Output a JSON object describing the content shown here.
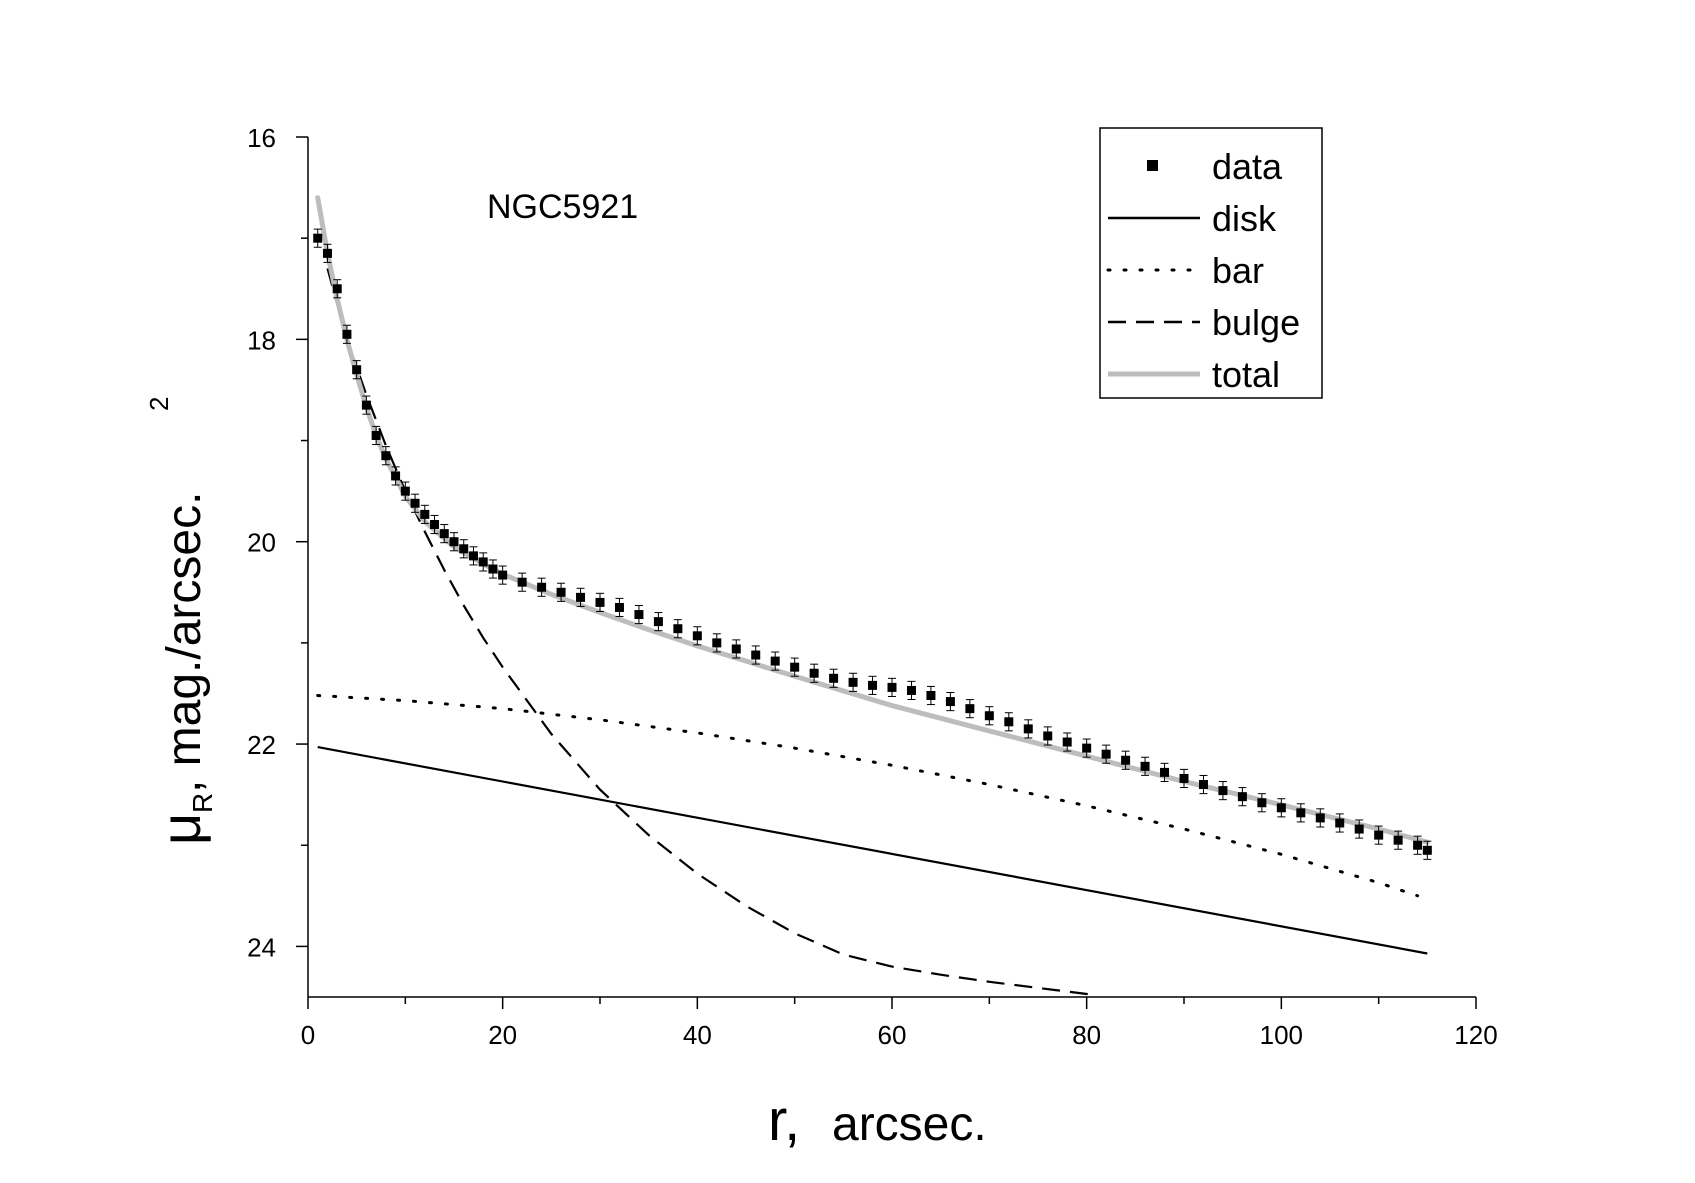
{
  "chart_data": {
    "type": "line",
    "title": "",
    "annotation": "NGC5921",
    "xlabel": {
      "main": "r,",
      "unit": "arcsec."
    },
    "ylabel": {
      "symbol": "μ",
      "subscript": "R",
      "unit": ", mag./arcsec.",
      "superscript": "2"
    },
    "xlim": [
      0,
      120
    ],
    "ylim": [
      16,
      24.5
    ],
    "y_inverted": true,
    "x_ticks": [
      0,
      20,
      40,
      60,
      80,
      100,
      120
    ],
    "x_tick_labels": [
      "0",
      "20",
      "40",
      "60",
      "80",
      "100",
      "120"
    ],
    "y_ticks": [
      16,
      18,
      20,
      22,
      24
    ],
    "y_tick_labels": [
      "16",
      "18",
      "20",
      "22",
      "24"
    ],
    "legend_position": "top-right",
    "legend": [
      {
        "key": "data",
        "label": "data",
        "style": "square"
      },
      {
        "key": "disk",
        "label": "disk",
        "style": "solid"
      },
      {
        "key": "bar",
        "label": "bar",
        "style": "dotted"
      },
      {
        "key": "bulge",
        "label": "bulge",
        "style": "dashed"
      },
      {
        "key": "total",
        "label": "total",
        "style": "solid-gray"
      }
    ],
    "series": [
      {
        "name": "data",
        "style": "square",
        "x": [
          1.0,
          2.0,
          3.0,
          4.0,
          5.0,
          6.0,
          7.0,
          8.0,
          9.0,
          10.0,
          11.0,
          12.0,
          13.0,
          14.0,
          15.0,
          16.0,
          17.0,
          18.0,
          19.0,
          20.0,
          22.0,
          24.0,
          26.0,
          28.0,
          30.0,
          32.0,
          34.0,
          36.0,
          38.0,
          40.0,
          42.0,
          44.0,
          46.0,
          48.0,
          50.0,
          52.0,
          54.0,
          56.0,
          58.0,
          60.0,
          62.0,
          64.0,
          66.0,
          68.0,
          70.0,
          72.0,
          74.0,
          76.0,
          78.0,
          80.0,
          82.0,
          84.0,
          86.0,
          88.0,
          90.0,
          92.0,
          94.0,
          96.0,
          98.0,
          100.0,
          102.0,
          104.0,
          106.0,
          108.0,
          110.0,
          112.0,
          114.0,
          115.0
        ],
        "y": [
          17.0,
          17.15,
          17.5,
          17.95,
          18.3,
          18.65,
          18.95,
          19.15,
          19.35,
          19.5,
          19.62,
          19.73,
          19.83,
          19.92,
          20.0,
          20.07,
          20.14,
          20.2,
          20.27,
          20.33,
          20.4,
          20.45,
          20.5,
          20.55,
          20.6,
          20.65,
          20.72,
          20.79,
          20.86,
          20.93,
          21.0,
          21.06,
          21.12,
          21.18,
          21.24,
          21.3,
          21.35,
          21.39,
          21.42,
          21.44,
          21.47,
          21.52,
          21.58,
          21.65,
          21.72,
          21.78,
          21.85,
          21.92,
          21.98,
          22.04,
          22.1,
          22.16,
          22.22,
          22.28,
          22.34,
          22.4,
          22.46,
          22.52,
          22.58,
          22.63,
          22.68,
          22.73,
          22.78,
          22.84,
          22.9,
          22.95,
          23.0,
          23.05
        ],
        "error": 0.06
      },
      {
        "name": "disk",
        "style": "solid",
        "x": [
          1,
          115
        ],
        "y": [
          22.03,
          24.07
        ]
      },
      {
        "name": "bar",
        "style": "dotted",
        "x": [
          1,
          10,
          20,
          30,
          40,
          50,
          60,
          70,
          80,
          90,
          100,
          110,
          114
        ],
        "y": [
          21.52,
          21.57,
          21.65,
          21.76,
          21.89,
          22.04,
          22.21,
          22.4,
          22.61,
          22.84,
          23.09,
          23.37,
          23.5
        ]
      },
      {
        "name": "bulge",
        "style": "dashed",
        "x": [
          2,
          4,
          6,
          8,
          10,
          12,
          14,
          16,
          18,
          20,
          25,
          30,
          35,
          40,
          45,
          50,
          55,
          60,
          65,
          70,
          75,
          80,
          81
        ],
        "y": [
          17.3,
          18.0,
          18.55,
          19.05,
          19.5,
          19.9,
          20.28,
          20.63,
          20.95,
          21.24,
          21.9,
          22.45,
          22.9,
          23.28,
          23.6,
          23.87,
          24.08,
          24.2,
          24.28,
          24.35,
          24.41,
          24.47,
          24.5
        ]
      },
      {
        "name": "total",
        "style": "solid-gray",
        "x": [
          1,
          2,
          3,
          4,
          5,
          6,
          7,
          8,
          10,
          12,
          15,
          18,
          20,
          25,
          30,
          35,
          40,
          50,
          60,
          70,
          80,
          90,
          100,
          110,
          115
        ],
        "y": [
          16.6,
          17.15,
          17.6,
          18.0,
          18.35,
          18.67,
          18.95,
          19.18,
          19.55,
          19.8,
          20.05,
          20.22,
          20.32,
          20.52,
          20.7,
          20.87,
          21.03,
          21.33,
          21.62,
          21.87,
          22.12,
          22.37,
          22.6,
          22.84,
          22.97
        ]
      }
    ]
  }
}
